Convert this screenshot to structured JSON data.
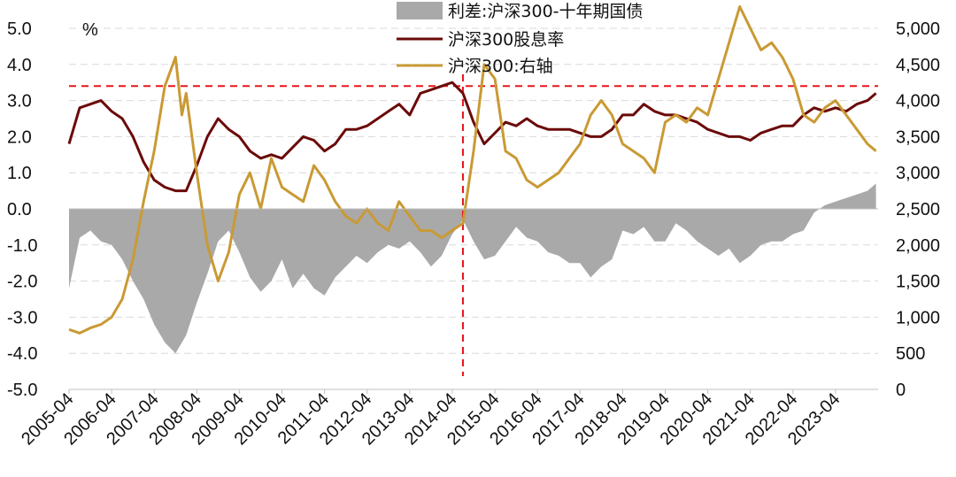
{
  "chart_data": {
    "type": "line",
    "unit_label": "%",
    "x_ticks": [
      "2005-04",
      "2006-04",
      "2007-04",
      "2008-04",
      "2009-04",
      "2010-04",
      "2011-04",
      "2012-04",
      "2013-04",
      "2014-04",
      "2015-04",
      "2016-04",
      "2017-04",
      "2018-04",
      "2019-04",
      "2020-04",
      "2021-04",
      "2022-04",
      "2023-04"
    ],
    "y_left_ticks": [
      "5.0",
      "4.0",
      "3.0",
      "2.0",
      "1.0",
      "0.0",
      "-1.0",
      "-2.0",
      "-3.0",
      "-4.0",
      "-5.0"
    ],
    "y_right_ticks": [
      "5,000",
      "4,500",
      "4,000",
      "3,500",
      "3,000",
      "2,500",
      "2,000",
      "1,500",
      "1,000",
      "500",
      "0"
    ],
    "ylim_left": [
      -5,
      5
    ],
    "ylim_right": [
      0,
      5000
    ],
    "xlim": [
      2005.25,
      2024.25
    ],
    "reference_lines": [
      {
        "type": "horizontal",
        "axis": "left",
        "value": 3.4,
        "color": "#e8141b",
        "dash": true
      },
      {
        "type": "vertical",
        "x": 2014.5,
        "color": "#e8141b",
        "dash": true
      }
    ],
    "series": [
      {
        "name": "利差:沪深300-十年期国债",
        "kind": "area",
        "axis": "left",
        "color": "#a9a9a9",
        "x": [
          2005.25,
          2005.5,
          2005.75,
          2006.0,
          2006.25,
          2006.5,
          2006.75,
          2007.0,
          2007.25,
          2007.5,
          2007.75,
          2008.0,
          2008.25,
          2008.5,
          2008.75,
          2009.0,
          2009.25,
          2009.5,
          2009.75,
          2010.0,
          2010.25,
          2010.5,
          2010.75,
          2011.0,
          2011.25,
          2011.5,
          2011.75,
          2012.0,
          2012.25,
          2012.5,
          2012.75,
          2013.0,
          2013.25,
          2013.5,
          2013.75,
          2014.0,
          2014.25,
          2014.5,
          2014.75,
          2015.0,
          2015.25,
          2015.5,
          2015.75,
          2016.0,
          2016.25,
          2016.5,
          2016.75,
          2017.0,
          2017.25,
          2017.5,
          2017.75,
          2018.0,
          2018.25,
          2018.5,
          2018.75,
          2019.0,
          2019.25,
          2019.5,
          2019.75,
          2020.0,
          2020.25,
          2020.5,
          2020.75,
          2021.0,
          2021.25,
          2021.5,
          2021.75,
          2022.0,
          2022.25,
          2022.5,
          2022.75,
          2023.0,
          2023.25,
          2023.5,
          2023.75,
          2024.0,
          2024.2
        ],
        "values": [
          -2.2,
          -0.8,
          -0.6,
          -0.9,
          -1.0,
          -1.4,
          -2.0,
          -2.5,
          -3.2,
          -3.7,
          -4.0,
          -3.5,
          -2.6,
          -1.8,
          -0.9,
          -0.6,
          -1.2,
          -1.9,
          -2.3,
          -2.0,
          -1.4,
          -2.2,
          -1.8,
          -2.2,
          -2.4,
          -1.9,
          -1.6,
          -1.3,
          -1.5,
          -1.2,
          -1.0,
          -1.1,
          -0.9,
          -1.2,
          -1.6,
          -1.3,
          -0.7,
          -0.3,
          -0.9,
          -1.4,
          -1.3,
          -0.9,
          -0.5,
          -0.8,
          -0.9,
          -1.2,
          -1.3,
          -1.5,
          -1.5,
          -1.9,
          -1.6,
          -1.4,
          -0.6,
          -0.7,
          -0.5,
          -0.9,
          -0.9,
          -0.4,
          -0.6,
          -0.9,
          -1.1,
          -1.3,
          -1.1,
          -1.5,
          -1.3,
          -1.0,
          -0.9,
          -0.9,
          -0.7,
          -0.6,
          -0.1,
          0.1,
          0.2,
          0.3,
          0.4,
          0.5,
          0.7
        ]
      },
      {
        "name": "沪深300股息率",
        "kind": "line",
        "axis": "left",
        "color": "#6b0a0a",
        "x": [
          2005.25,
          2005.5,
          2005.75,
          2006.0,
          2006.25,
          2006.5,
          2006.75,
          2007.0,
          2007.25,
          2007.5,
          2007.75,
          2008.0,
          2008.25,
          2008.5,
          2008.75,
          2009.0,
          2009.25,
          2009.5,
          2009.75,
          2010.0,
          2010.25,
          2010.5,
          2010.75,
          2011.0,
          2011.25,
          2011.5,
          2011.75,
          2012.0,
          2012.25,
          2012.5,
          2012.75,
          2013.0,
          2013.25,
          2013.5,
          2013.75,
          2014.0,
          2014.25,
          2014.5,
          2014.75,
          2015.0,
          2015.25,
          2015.5,
          2015.75,
          2016.0,
          2016.25,
          2016.5,
          2016.75,
          2017.0,
          2017.25,
          2017.5,
          2017.75,
          2018.0,
          2018.25,
          2018.5,
          2018.75,
          2019.0,
          2019.25,
          2019.5,
          2019.75,
          2020.0,
          2020.25,
          2020.5,
          2020.75,
          2021.0,
          2021.25,
          2021.5,
          2021.75,
          2022.0,
          2022.25,
          2022.5,
          2022.75,
          2023.0,
          2023.25,
          2023.5,
          2023.75,
          2024.0,
          2024.2
        ],
        "values": [
          1.8,
          2.8,
          2.9,
          3.0,
          2.7,
          2.5,
          2.0,
          1.3,
          0.8,
          0.6,
          0.5,
          0.5,
          1.2,
          2.0,
          2.5,
          2.2,
          2.0,
          1.6,
          1.4,
          1.5,
          1.4,
          1.7,
          2.0,
          1.9,
          1.6,
          1.8,
          2.2,
          2.2,
          2.3,
          2.5,
          2.7,
          2.9,
          2.6,
          3.2,
          3.3,
          3.4,
          3.5,
          3.2,
          2.4,
          1.8,
          2.1,
          2.4,
          2.3,
          2.5,
          2.3,
          2.2,
          2.2,
          2.2,
          2.1,
          2.0,
          2.0,
          2.2,
          2.6,
          2.6,
          2.9,
          2.7,
          2.6,
          2.6,
          2.5,
          2.4,
          2.2,
          2.1,
          2.0,
          2.0,
          1.9,
          2.1,
          2.2,
          2.3,
          2.3,
          2.6,
          2.8,
          2.7,
          2.8,
          2.7,
          2.9,
          3.0,
          3.2
        ]
      },
      {
        "name": "沪深300:右轴",
        "kind": "line",
        "axis": "right",
        "color": "#c99a34",
        "x": [
          2005.25,
          2005.5,
          2005.75,
          2006.0,
          2006.25,
          2006.5,
          2006.75,
          2007.0,
          2007.25,
          2007.5,
          2007.75,
          2007.9,
          2008.0,
          2008.25,
          2008.5,
          2008.75,
          2009.0,
          2009.25,
          2009.5,
          2009.75,
          2010.0,
          2010.25,
          2010.5,
          2010.75,
          2011.0,
          2011.25,
          2011.5,
          2011.75,
          2012.0,
          2012.25,
          2012.5,
          2012.75,
          2013.0,
          2013.25,
          2013.5,
          2013.75,
          2014.0,
          2014.25,
          2014.5,
          2014.75,
          2015.0,
          2015.25,
          2015.5,
          2015.75,
          2016.0,
          2016.25,
          2016.5,
          2016.75,
          2017.0,
          2017.25,
          2017.5,
          2017.75,
          2018.0,
          2018.25,
          2018.5,
          2018.75,
          2019.0,
          2019.25,
          2019.5,
          2019.75,
          2020.0,
          2020.25,
          2020.5,
          2020.75,
          2021.0,
          2021.25,
          2021.5,
          2021.75,
          2022.0,
          2022.25,
          2022.5,
          2022.75,
          2023.0,
          2023.25,
          2023.5,
          2023.75,
          2024.0,
          2024.2
        ],
        "values": [
          830,
          780,
          850,
          900,
          1000,
          1250,
          1800,
          2600,
          3300,
          4200,
          4600,
          3800,
          4100,
          3000,
          2000,
          1500,
          1900,
          2700,
          3000,
          2500,
          3200,
          2800,
          2700,
          2600,
          3100,
          2900,
          2600,
          2400,
          2300,
          2500,
          2300,
          2200,
          2600,
          2400,
          2200,
          2200,
          2100,
          2200,
          2300,
          3300,
          4500,
          4300,
          3300,
          3200,
          2900,
          2800,
          2900,
          3000,
          3200,
          3400,
          3800,
          4000,
          3800,
          3400,
          3300,
          3200,
          3000,
          3700,
          3800,
          3700,
          3900,
          3800,
          4300,
          4800,
          5300,
          5000,
          4700,
          4800,
          4600,
          4300,
          3800,
          3700,
          3900,
          4000,
          3800,
          3600,
          3400,
          3300
        ]
      }
    ]
  }
}
